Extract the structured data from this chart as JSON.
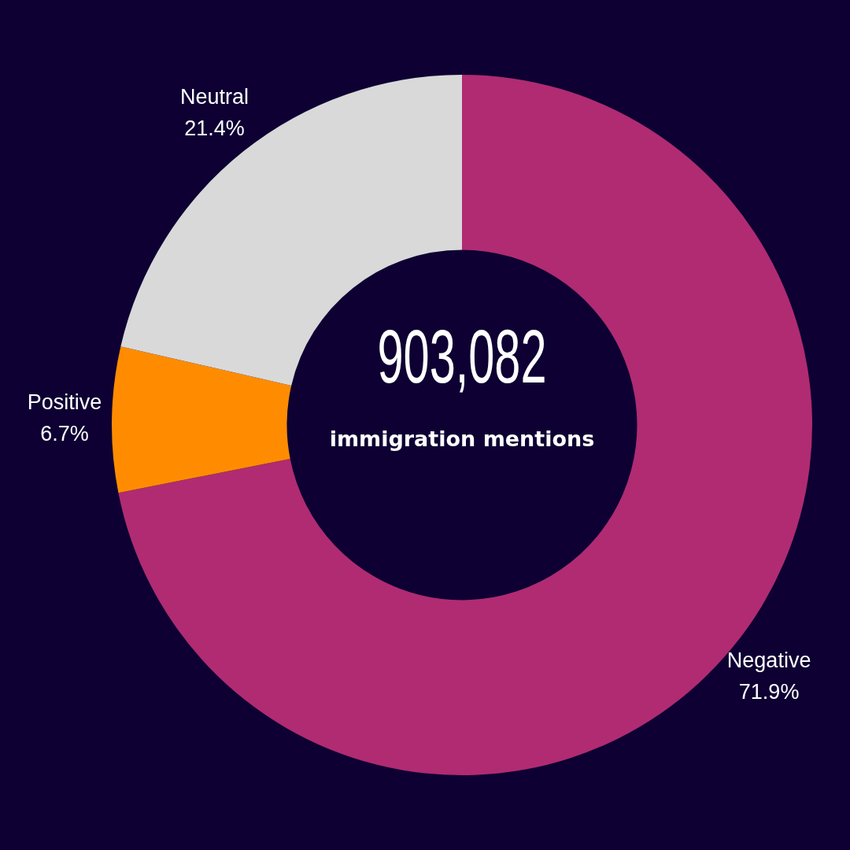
{
  "chart_data": {
    "type": "donut",
    "categories": [
      "Negative",
      "Positive",
      "Neutral"
    ],
    "values": [
      71.9,
      6.7,
      21.4
    ],
    "colors": [
      "#b02b72",
      "#ff8c00",
      "#d9d9d9"
    ],
    "value_labels": [
      "71.9%",
      "6.7%",
      "21.4%"
    ],
    "legend": false,
    "annotations": [
      "903,082",
      "immigration mentions"
    ]
  }
}
